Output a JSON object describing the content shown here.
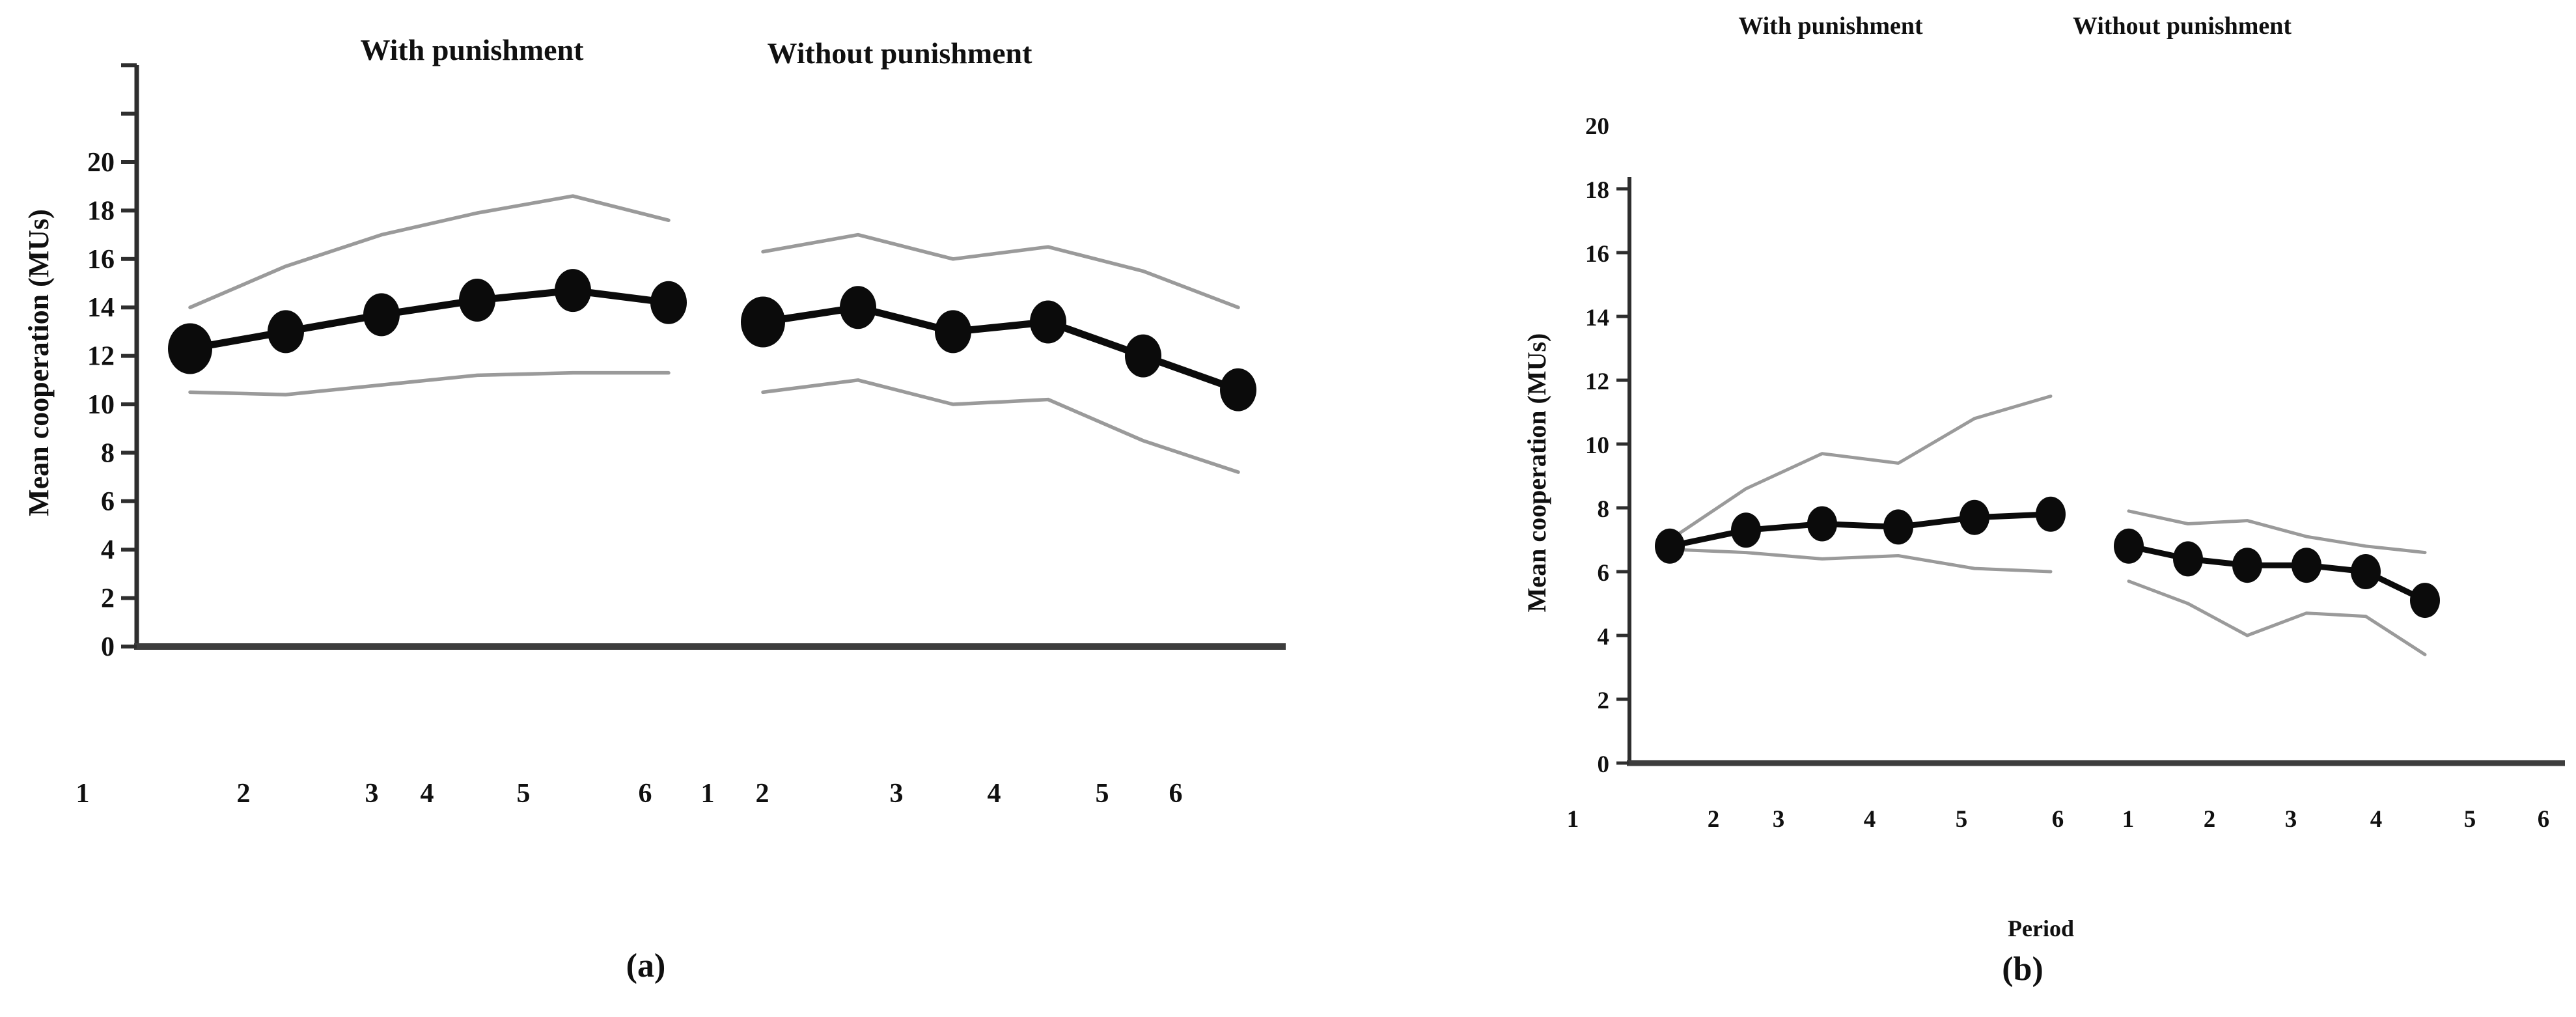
{
  "colors": {
    "mean_line": "#0b0b0b",
    "ci_line": "#9a9a9a",
    "axis_line": "#2e2e2e",
    "baseline": "#3d3d3d",
    "text": "#101010"
  },
  "chart_data": [
    {
      "id": "a",
      "type": "line",
      "caption": "(a)",
      "ylabel": "Mean cooperation (MUs)",
      "xlabel": "",
      "ylim": [
        0,
        20
      ],
      "grid": false,
      "legend": "none",
      "yticks": [
        0,
        2,
        4,
        6,
        8,
        10,
        12,
        14,
        16,
        18,
        20
      ],
      "ytick_labels": [
        "0",
        "2",
        "4",
        "6",
        "8",
        "10",
        "12",
        "14",
        "16",
        "18",
        "20"
      ],
      "unlabeled_ytick_values": [
        22,
        24
      ],
      "groups": [
        {
          "label": "With punishment",
          "x_tick_labels": [
            "1",
            "2",
            "3",
            "4",
            "5",
            "6"
          ],
          "series": [
            {
              "name": "mean cooperation",
              "style": "mean",
              "values": [
                12.3,
                13.0,
                13.7,
                14.3,
                14.7,
                14.2
              ]
            },
            {
              "name": "upper confidence band",
              "style": "ci",
              "values": [
                14.0,
                15.7,
                17.0,
                17.9,
                18.6,
                17.6
              ]
            },
            {
              "name": "lower confidence band",
              "style": "ci",
              "values": [
                10.5,
                10.4,
                10.8,
                11.2,
                11.3,
                11.3
              ]
            }
          ]
        },
        {
          "label": "Without punishment",
          "x_tick_labels": [
            "1",
            "2",
            "3",
            "4",
            "5",
            "6"
          ],
          "series": [
            {
              "name": "mean cooperation",
              "style": "mean",
              "values": [
                13.4,
                14.0,
                13.0,
                13.4,
                12.0,
                10.6
              ]
            },
            {
              "name": "upper confidence band",
              "style": "ci",
              "values": [
                16.3,
                17.0,
                16.0,
                16.5,
                15.5,
                14.0
              ]
            },
            {
              "name": "lower confidence band",
              "style": "ci",
              "values": [
                10.5,
                11.0,
                10.0,
                10.2,
                8.5,
                7.2
              ]
            }
          ]
        }
      ]
    },
    {
      "id": "b",
      "type": "line",
      "caption": "(b)",
      "ylabel": "Mean cooperation (MUs)",
      "xlabel": "Period",
      "ylim": [
        0,
        20
      ],
      "grid": false,
      "legend": "none",
      "yticks": [
        0,
        2,
        4,
        6,
        8,
        10,
        12,
        14,
        16,
        18
      ],
      "ytick_labels": [
        "0",
        "2",
        "4",
        "6",
        "8",
        "10",
        "12",
        "14",
        "16",
        "18"
      ],
      "extra_ylabel": {
        "text": "20",
        "value": 20
      },
      "groups": [
        {
          "label": "With punishment",
          "x_tick_labels": [
            "1",
            "2",
            "3",
            "4",
            "5",
            "6"
          ],
          "series": [
            {
              "name": "mean cooperation",
              "style": "mean",
              "values": [
                6.8,
                7.3,
                7.5,
                7.4,
                7.7,
                7.8
              ]
            },
            {
              "name": "upper confidence band",
              "style": "ci",
              "values": [
                7.0,
                8.6,
                9.7,
                9.4,
                10.8,
                11.5
              ]
            },
            {
              "name": "lower confidence band",
              "style": "ci",
              "values": [
                6.7,
                6.6,
                6.4,
                6.5,
                6.1,
                6.0
              ]
            }
          ]
        },
        {
          "label": "Without punishment",
          "x_tick_labels": [
            "1",
            "2",
            "3",
            "4",
            "5",
            "6"
          ],
          "series": [
            {
              "name": "mean cooperation",
              "style": "mean",
              "values": [
                6.8,
                6.4,
                6.2,
                6.2,
                6.0,
                5.1
              ]
            },
            {
              "name": "upper confidence band",
              "style": "ci",
              "values": [
                7.9,
                7.5,
                7.6,
                7.1,
                6.8,
                6.6
              ]
            },
            {
              "name": "lower confidence band",
              "style": "ci",
              "values": [
                5.7,
                5.0,
                4.0,
                4.7,
                4.6,
                3.4
              ]
            }
          ]
        }
      ]
    }
  ]
}
